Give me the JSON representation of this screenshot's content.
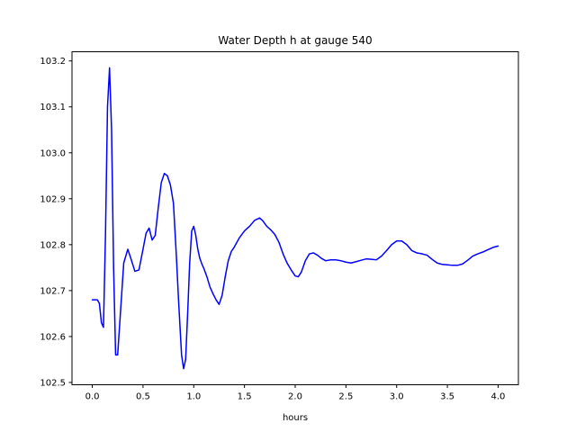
{
  "chart_data": {
    "type": "line",
    "title": "Water Depth h at gauge 540",
    "xlabel": "hours",
    "ylabel": "",
    "xlim": [
      -0.2,
      4.2
    ],
    "ylim": [
      102.495,
      103.22
    ],
    "xticks": [
      0.0,
      0.5,
      1.0,
      1.5,
      2.0,
      2.5,
      3.0,
      3.5,
      4.0
    ],
    "xtick_labels": [
      "0.0",
      "0.5",
      "1.0",
      "1.5",
      "2.0",
      "2.5",
      "3.0",
      "3.5",
      "4.0"
    ],
    "yticks": [
      102.5,
      102.6,
      102.7,
      102.8,
      102.9,
      103.0,
      103.1,
      103.2
    ],
    "ytick_labels": [
      "102.5",
      "102.6",
      "102.7",
      "102.8",
      "102.9",
      "103.0",
      "103.1",
      "103.2"
    ],
    "grid": false,
    "legend": "none",
    "series": [
      {
        "color": "#0000ff",
        "x": [
          0.0,
          0.05,
          0.07,
          0.09,
          0.11,
          0.13,
          0.15,
          0.17,
          0.19,
          0.21,
          0.23,
          0.25,
          0.28,
          0.31,
          0.35,
          0.38,
          0.42,
          0.46,
          0.5,
          0.53,
          0.56,
          0.59,
          0.62,
          0.65,
          0.68,
          0.71,
          0.74,
          0.77,
          0.8,
          0.83,
          0.85,
          0.88,
          0.9,
          0.92,
          0.94,
          0.96,
          0.98,
          1.0,
          1.02,
          1.04,
          1.06,
          1.08,
          1.1,
          1.13,
          1.16,
          1.19,
          1.22,
          1.25,
          1.28,
          1.31,
          1.34,
          1.37,
          1.4,
          1.45,
          1.5,
          1.55,
          1.6,
          1.65,
          1.68,
          1.72,
          1.76,
          1.8,
          1.84,
          1.88,
          1.92,
          1.96,
          2.0,
          2.03,
          2.06,
          2.1,
          2.14,
          2.18,
          2.22,
          2.26,
          2.3,
          2.35,
          2.4,
          2.45,
          2.5,
          2.55,
          2.6,
          2.65,
          2.7,
          2.75,
          2.8,
          2.85,
          2.9,
          2.95,
          3.0,
          3.05,
          3.1,
          3.15,
          3.2,
          3.25,
          3.3,
          3.35,
          3.4,
          3.45,
          3.5,
          3.55,
          3.6,
          3.65,
          3.7,
          3.75,
          3.8,
          3.85,
          3.9,
          3.95,
          4.0
        ],
        "y": [
          102.68,
          102.68,
          102.672,
          102.63,
          102.62,
          102.82,
          103.1,
          103.185,
          103.05,
          102.75,
          102.56,
          102.56,
          102.66,
          102.76,
          102.79,
          102.77,
          102.742,
          102.745,
          102.79,
          102.825,
          102.836,
          102.81,
          102.82,
          102.88,
          102.935,
          102.955,
          102.95,
          102.93,
          102.89,
          102.77,
          102.68,
          102.56,
          102.53,
          102.55,
          102.65,
          102.76,
          102.83,
          102.84,
          102.82,
          102.79,
          102.77,
          102.758,
          102.748,
          102.73,
          102.708,
          102.693,
          102.68,
          102.67,
          102.69,
          102.73,
          102.765,
          102.785,
          102.795,
          102.815,
          102.83,
          102.84,
          102.853,
          102.858,
          102.852,
          102.84,
          102.832,
          102.822,
          102.805,
          102.78,
          102.76,
          102.745,
          102.732,
          102.73,
          102.74,
          102.765,
          102.78,
          102.782,
          102.777,
          102.77,
          102.765,
          102.767,
          102.767,
          102.765,
          102.762,
          102.76,
          102.763,
          102.766,
          102.769,
          102.768,
          102.767,
          102.775,
          102.787,
          102.8,
          102.808,
          102.808,
          102.8,
          102.787,
          102.782,
          102.78,
          102.777,
          102.768,
          102.76,
          102.757,
          102.756,
          102.755,
          102.755,
          102.758,
          102.766,
          102.775,
          102.78,
          102.784,
          102.789,
          102.794,
          102.797
        ]
      }
    ]
  }
}
